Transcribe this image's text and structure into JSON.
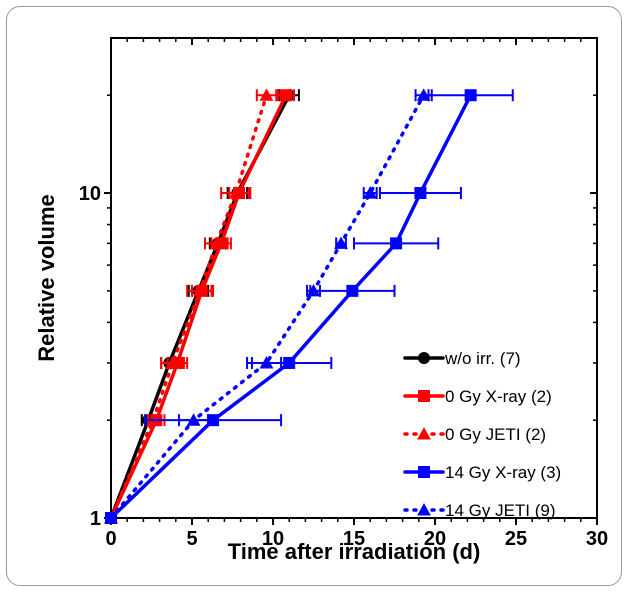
{
  "chart_data": {
    "type": "line",
    "title": "",
    "xlabel": "Time after irradiation (d)",
    "ylabel": "Relative volume",
    "xlim": [
      0,
      30
    ],
    "ylim": [
      1,
      30
    ],
    "y_scale": "log",
    "x_ticks": [
      0,
      5,
      10,
      15,
      20,
      25,
      30
    ],
    "y_ticks": [
      1,
      10
    ],
    "grid": false,
    "legend_position": "bottom-right",
    "series": [
      {
        "name": "w/o irr. (7)",
        "color": "#000000",
        "line_style": "solid",
        "marker": "circle",
        "points": [
          {
            "x": 0,
            "y": 1,
            "xerr": 0
          },
          {
            "x": 2.3,
            "y": 2,
            "xerr": 0.4
          },
          {
            "x": 3.6,
            "y": 3,
            "xerr": 0.5
          },
          {
            "x": 5.4,
            "y": 5,
            "xerr": 0.6
          },
          {
            "x": 6.6,
            "y": 7,
            "xerr": 0.5
          },
          {
            "x": 7.8,
            "y": 10,
            "xerr": 0.6
          },
          {
            "x": 11,
            "y": 20,
            "xerr": 0.6
          }
        ]
      },
      {
        "name": "0 Gy X-ray (2)",
        "color": "#ff0000",
        "line_style": "solid",
        "marker": "square",
        "points": [
          {
            "x": 0,
            "y": 1,
            "xerr": 0
          },
          {
            "x": 2.8,
            "y": 2,
            "xerr": 0.5
          },
          {
            "x": 4.1,
            "y": 3,
            "xerr": 0.6
          },
          {
            "x": 5.6,
            "y": 5,
            "xerr": 0.6
          },
          {
            "x": 6.8,
            "y": 7,
            "xerr": 0.6
          },
          {
            "x": 7.9,
            "y": 10,
            "xerr": 0.6
          },
          {
            "x": 10.8,
            "y": 20,
            "xerr": 0.5
          }
        ]
      },
      {
        "name": "0 Gy JETI (2)",
        "color": "#ff0000",
        "line_style": "dotted",
        "marker": "triangle",
        "points": [
          {
            "x": 0,
            "y": 1,
            "xerr": 0
          },
          {
            "x": 2.6,
            "y": 2,
            "xerr": 0.3
          },
          {
            "x": 3.8,
            "y": 3,
            "xerr": 0.7
          },
          {
            "x": 5.5,
            "y": 5,
            "xerr": 0.8
          },
          {
            "x": 6.5,
            "y": 7,
            "xerr": 0.7
          },
          {
            "x": 7.7,
            "y": 10,
            "xerr": 0.9
          },
          {
            "x": 9.6,
            "y": 20,
            "xerr": 0.6
          }
        ]
      },
      {
        "name": "14 Gy X-ray (3)",
        "color": "#0000ff",
        "line_style": "solid",
        "marker": "square",
        "points": [
          {
            "x": 0,
            "y": 1,
            "xerr": 0
          },
          {
            "x": 6.3,
            "y": 2,
            "xerr": 4.2
          },
          {
            "x": 11,
            "y": 3,
            "xerr": 2.6
          },
          {
            "x": 14.9,
            "y": 5,
            "xerr": 2.6
          },
          {
            "x": 17.6,
            "y": 7,
            "xerr": 2.6
          },
          {
            "x": 19.1,
            "y": 10,
            "xerr": 2.5
          },
          {
            "x": 22.2,
            "y": 20,
            "xerr": 2.6
          }
        ]
      },
      {
        "name": "14 Gy JETI (9)",
        "color": "#0000ff",
        "line_style": "dotted",
        "marker": "triangle",
        "points": [
          {
            "x": 0,
            "y": 1,
            "xerr": 0
          },
          {
            "x": 5.1,
            "y": 2,
            "xerr": 0.9
          },
          {
            "x": 9.6,
            "y": 3,
            "xerr": 0.9
          },
          {
            "x": 12.5,
            "y": 5,
            "xerr": 0.4
          },
          {
            "x": 14.2,
            "y": 7,
            "xerr": 0.3
          },
          {
            "x": 16,
            "y": 10,
            "xerr": 0.4
          },
          {
            "x": 19.3,
            "y": 20,
            "xerr": 0.5
          }
        ]
      }
    ]
  }
}
